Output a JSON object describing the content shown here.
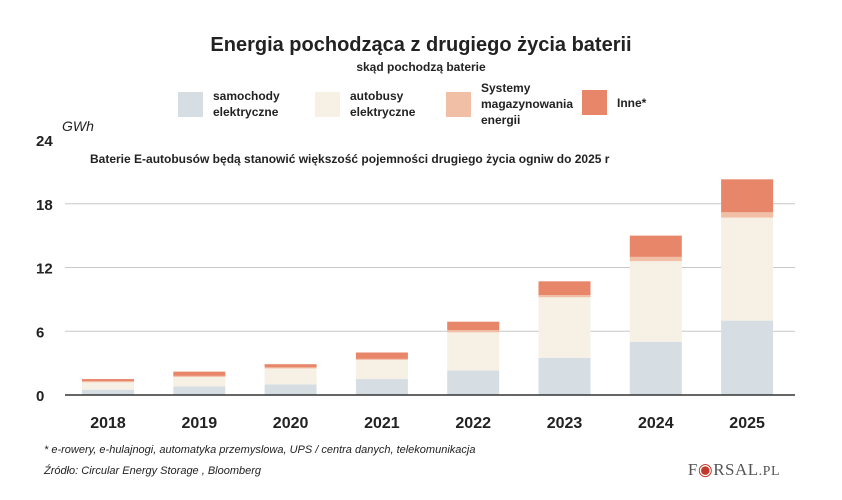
{
  "chart_data": {
    "type": "bar",
    "stacked": true,
    "title": "Energia pochodząca z drugiego życia baterii",
    "subtitle": "skąd pochodzą baterie",
    "ylabel": "GWh",
    "annotation": "Baterie E-autobusów będą stanowić większość pojemności drugiego życia ogniw do 2025 r",
    "categories": [
      "2018",
      "2019",
      "2020",
      "2021",
      "2022",
      "2023",
      "2024",
      "2025"
    ],
    "ylim": [
      0,
      24
    ],
    "yticks": [
      0,
      6,
      12,
      18,
      24
    ],
    "grid": true,
    "legend_position": "top",
    "series": [
      {
        "name": "samochody elektryczne",
        "color": "#d7dee3",
        "values": [
          0.5,
          0.8,
          1.0,
          1.5,
          2.3,
          3.5,
          5.0,
          7.0
        ]
      },
      {
        "name": "autobusy elektryczne",
        "color": "#f6f0e5",
        "values": [
          0.7,
          0.9,
          1.5,
          1.8,
          3.6,
          5.7,
          7.6,
          9.7
        ]
      },
      {
        "name": "Systemy magazynowania energii",
        "color": "#f1bfa6",
        "values": [
          0.1,
          0.1,
          0.1,
          0.1,
          0.2,
          0.2,
          0.4,
          0.5
        ]
      },
      {
        "name": "Inne*",
        "color": "#e8866a",
        "values": [
          0.2,
          0.4,
          0.3,
          0.6,
          0.8,
          1.3,
          2.0,
          3.1
        ]
      }
    ]
  },
  "legend_lines": [
    [
      "samochody",
      "elektryczne"
    ],
    [
      "autobusy",
      "elektryczne"
    ],
    [
      "Systemy",
      "magazynowania",
      "energii"
    ],
    [
      "Inne*"
    ]
  ],
  "footnote": "* e-rowery, e-hulajnogi, automatyka przemyslowa, UPS / centra danych, telekomunikacja",
  "source": "Źródło: Circular Energy Storage , Bloomberg",
  "logo": "FORSAL.PL"
}
